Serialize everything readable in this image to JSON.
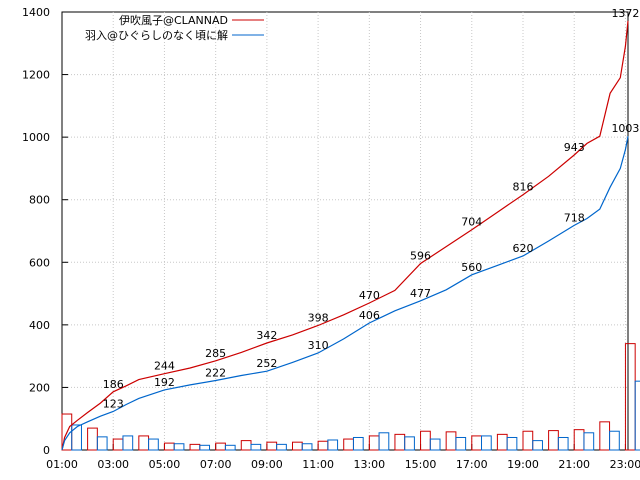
{
  "chart_data": {
    "type": "line",
    "xlabels": [
      "01:00",
      "03:00",
      "05:00",
      "07:00",
      "09:00",
      "11:00",
      "13:00",
      "15:00",
      "17:00",
      "19:00",
      "21:00",
      "23:00"
    ],
    "x_hours": [
      1,
      3,
      5,
      7,
      9,
      11,
      13,
      15,
      17,
      19,
      21,
      23
    ],
    "xlim": [
      1,
      23.1
    ],
    "ylim": [
      0,
      1400
    ],
    "yticks": [
      0,
      200,
      400,
      600,
      800,
      1000,
      1200,
      1400
    ],
    "grid": true,
    "legend_position": "top-left",
    "series": [
      {
        "name": "伊吹風子@CLANNAD",
        "color": "#cc0000",
        "points": [
          [
            1,
            0
          ],
          [
            1.1,
            40
          ],
          [
            1.3,
            75
          ],
          [
            1.6,
            95
          ],
          [
            2,
            120
          ],
          [
            2.5,
            150
          ],
          [
            3,
            186
          ],
          [
            3.5,
            205
          ],
          [
            4,
            225
          ],
          [
            5,
            244
          ],
          [
            6,
            262
          ],
          [
            7,
            285
          ],
          [
            8,
            312
          ],
          [
            9,
            342
          ],
          [
            10,
            368
          ],
          [
            11,
            398
          ],
          [
            12,
            432
          ],
          [
            13,
            470
          ],
          [
            14,
            510
          ],
          [
            15,
            596
          ],
          [
            16,
            650
          ],
          [
            17,
            704
          ],
          [
            18,
            760
          ],
          [
            19,
            816
          ],
          [
            20,
            875
          ],
          [
            21,
            943
          ],
          [
            21.5,
            980
          ],
          [
            22,
            1003
          ],
          [
            22.4,
            1140
          ],
          [
            22.8,
            1190
          ],
          [
            23,
            1290
          ],
          [
            23.1,
            1372
          ]
        ],
        "labels": [
          {
            "x": 3,
            "y": 186,
            "text": "186"
          },
          {
            "x": 5,
            "y": 244,
            "text": "244"
          },
          {
            "x": 7,
            "y": 285,
            "text": "285"
          },
          {
            "x": 9,
            "y": 342,
            "text": "342"
          },
          {
            "x": 11,
            "y": 398,
            "text": "398"
          },
          {
            "x": 13,
            "y": 470,
            "text": "470"
          },
          {
            "x": 15,
            "y": 596,
            "text": "596"
          },
          {
            "x": 17,
            "y": 704,
            "text": "704"
          },
          {
            "x": 19,
            "y": 816,
            "text": "816"
          },
          {
            "x": 21,
            "y": 943,
            "text": "943"
          },
          {
            "x": 23,
            "y": 1372,
            "text": "1372"
          }
        ]
      },
      {
        "name": "羽入@ひぐらしのなく頃に解",
        "color": "#0066cc",
        "points": [
          [
            1,
            0
          ],
          [
            1.1,
            30
          ],
          [
            1.3,
            55
          ],
          [
            1.6,
            75
          ],
          [
            2,
            90
          ],
          [
            2.5,
            108
          ],
          [
            3,
            123
          ],
          [
            3.5,
            145
          ],
          [
            4,
            165
          ],
          [
            5,
            192
          ],
          [
            6,
            208
          ],
          [
            7,
            222
          ],
          [
            8,
            238
          ],
          [
            9,
            252
          ],
          [
            10,
            280
          ],
          [
            11,
            310
          ],
          [
            12,
            355
          ],
          [
            13,
            406
          ],
          [
            14,
            445
          ],
          [
            15,
            477
          ],
          [
            16,
            512
          ],
          [
            17,
            560
          ],
          [
            18,
            590
          ],
          [
            19,
            620
          ],
          [
            20,
            668
          ],
          [
            21,
            718
          ],
          [
            21.5,
            740
          ],
          [
            22,
            770
          ],
          [
            22.4,
            840
          ],
          [
            22.8,
            900
          ],
          [
            23,
            960
          ],
          [
            23.1,
            1003
          ]
        ],
        "labels": [
          {
            "x": 3,
            "y": 123,
            "text": "123"
          },
          {
            "x": 5,
            "y": 192,
            "text": "192"
          },
          {
            "x": 7,
            "y": 222,
            "text": "222"
          },
          {
            "x": 9,
            "y": 252,
            "text": "252"
          },
          {
            "x": 11,
            "y": 310,
            "text": "310"
          },
          {
            "x": 13,
            "y": 406,
            "text": "406"
          },
          {
            "x": 15,
            "y": 477,
            "text": "477"
          },
          {
            "x": 17,
            "y": 560,
            "text": "560"
          },
          {
            "x": 19,
            "y": 620,
            "text": "620"
          },
          {
            "x": 21,
            "y": 718,
            "text": "718"
          },
          {
            "x": 23,
            "y": 1003,
            "text": "1003"
          }
        ]
      }
    ],
    "bars": {
      "hours": [
        1,
        2,
        3,
        4,
        5,
        6,
        7,
        8,
        9,
        10,
        11,
        12,
        13,
        14,
        15,
        16,
        17,
        18,
        19,
        20,
        21,
        22,
        23
      ],
      "red": [
        115,
        70,
        35,
        45,
        22,
        18,
        22,
        30,
        25,
        25,
        28,
        35,
        45,
        50,
        60,
        58,
        45,
        50,
        60,
        62,
        65,
        90,
        340
      ],
      "blue": [
        80,
        42,
        45,
        35,
        20,
        15,
        15,
        18,
        18,
        20,
        32,
        40,
        55,
        42,
        35,
        40,
        45,
        40,
        30,
        40,
        55,
        60,
        220
      ]
    }
  }
}
